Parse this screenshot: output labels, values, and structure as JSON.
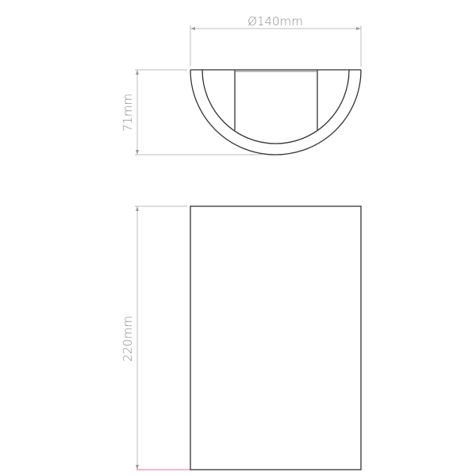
{
  "dimensions": {
    "diameter": "Ø140mm",
    "depth": "71mm",
    "height": "220mm"
  },
  "colors": {
    "outline": "#333333",
    "dimension_line": "#bdbdbd",
    "dimension_text": "#8a8a8a",
    "accent_line": "#f08aa8"
  }
}
